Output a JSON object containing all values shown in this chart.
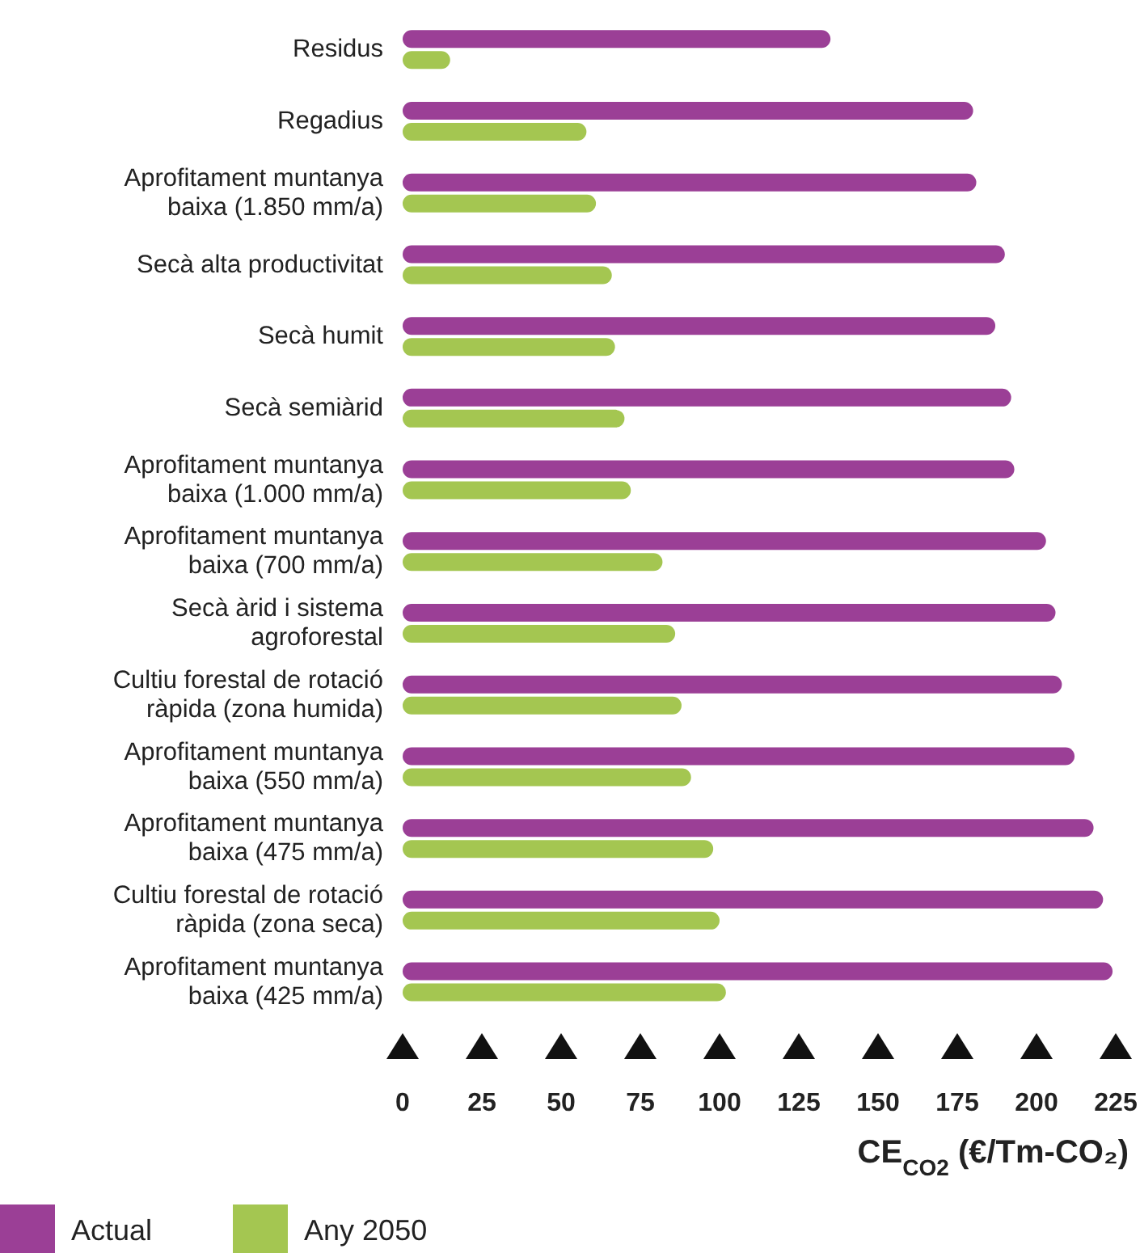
{
  "chart_data": {
    "type": "bar",
    "orientation": "horizontal",
    "xlabel": "CE$_{CO2}$ (€/Tm-CO₂)",
    "categories": [
      "Residus",
      "Regadius",
      "Aprofitament muntanya baixa (1.850 mm/a)",
      "Secà alta productivitat",
      "Secà humit",
      "Secà semiàrid",
      "Aprofitament muntanya baixa (1.000 mm/a)",
      "Aprofitament muntanya baixa (700 mm/a)",
      "Secà àrid i sistema agroforestal",
      "Cultiu forestal de rotació ràpida (zona humida)",
      "Aprofitament muntanya baixa (550 mm/a)",
      "Aprofitament muntanya baixa (475 mm/a)",
      "Cultiu forestal de rotació ràpida (zona seca)",
      "Aprofitament muntanya baixa (425 mm/a)"
    ],
    "series": [
      {
        "name": "Actual",
        "color": "#9b3f96",
        "values": [
          135,
          180,
          181,
          190,
          187,
          192,
          193,
          203,
          206,
          208,
          212,
          218,
          221,
          224
        ]
      },
      {
        "name": "Any 2050",
        "color": "#a4c651",
        "values": [
          15,
          58,
          61,
          66,
          67,
          70,
          72,
          82,
          86,
          88,
          91,
          98,
          100,
          102
        ]
      }
    ],
    "xlim": [
      0,
      225
    ],
    "xticks": [
      0,
      25,
      50,
      75,
      100,
      125,
      150,
      175,
      200,
      225
    ],
    "legend": "bottom left"
  }
}
